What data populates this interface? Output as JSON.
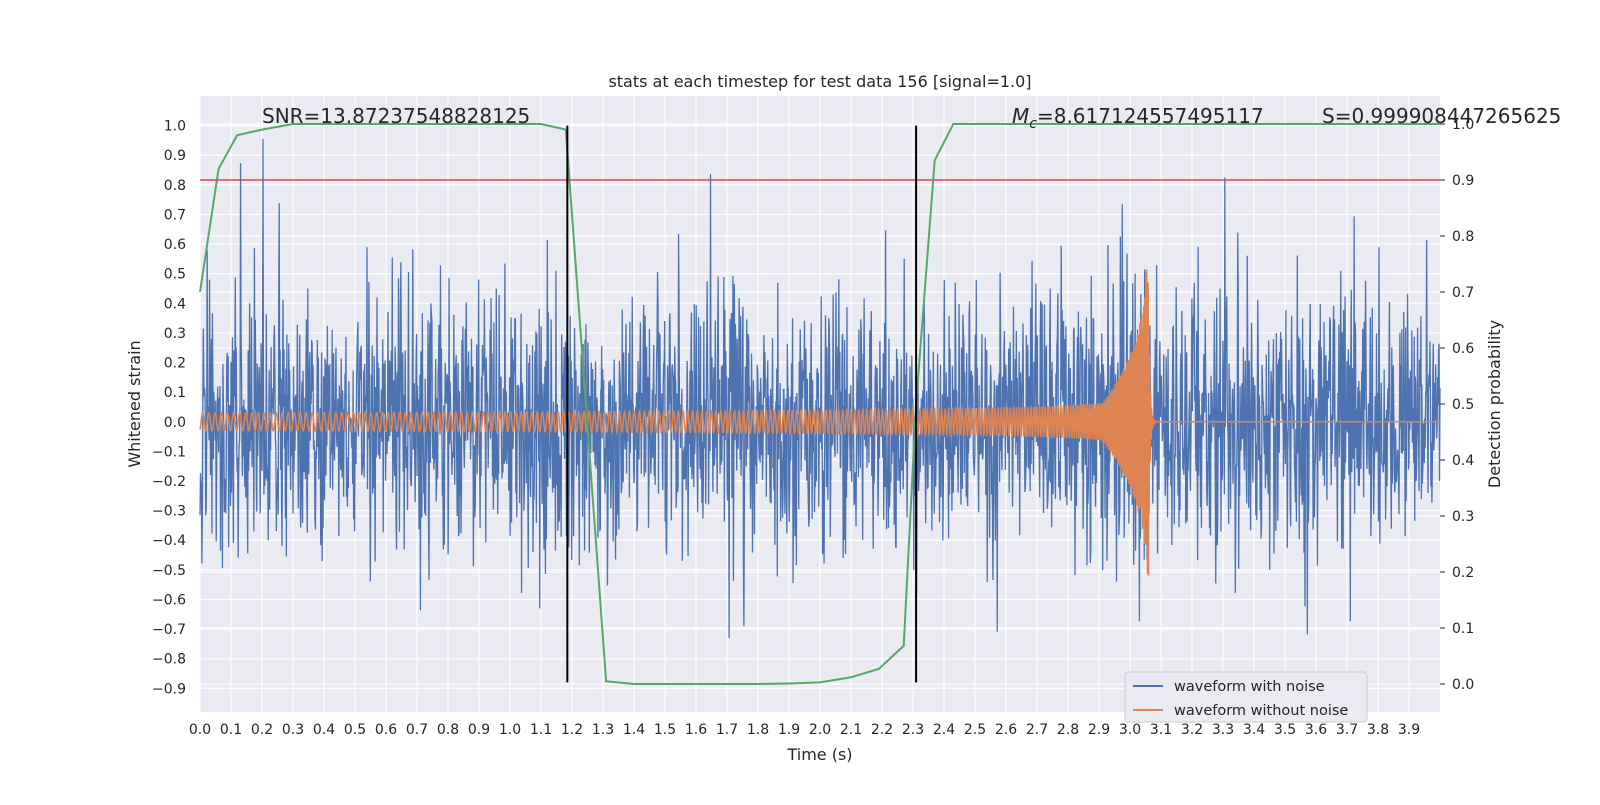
{
  "chart_data": {
    "type": "line",
    "title": "stats at each timestep for test data 156 [signal=1.0]",
    "xlabel": "Time (s)",
    "ylabel": "Whitened strain",
    "y2label": "Detection probability",
    "xlim": [
      0.0,
      4.0
    ],
    "ylim": [
      -0.98,
      1.1
    ],
    "y2lim": [
      -0.05,
      1.05
    ],
    "grid": true,
    "legend_position": "lower-right",
    "x_ticks": [
      "0.0",
      "0.1",
      "0.2",
      "0.3",
      "0.4",
      "0.5",
      "0.6",
      "0.7",
      "0.8",
      "0.9",
      "1.0",
      "1.1",
      "1.2",
      "1.3",
      "1.4",
      "1.5",
      "1.6",
      "1.7",
      "1.8",
      "1.9",
      "2.0",
      "2.1",
      "2.2",
      "2.3",
      "2.4",
      "2.5",
      "2.6",
      "2.7",
      "2.8",
      "2.9",
      "3.0",
      "3.1",
      "3.2",
      "3.3",
      "3.4",
      "3.5",
      "3.6",
      "3.7",
      "3.8",
      "3.9"
    ],
    "y_ticks": [
      "1.0",
      "0.9",
      "0.8",
      "0.7",
      "0.6",
      "0.5",
      "0.4",
      "0.3",
      "0.2",
      "0.1",
      "0.0",
      "−0.1",
      "−0.2",
      "−0.3",
      "−0.4",
      "−0.5",
      "−0.6",
      "−0.7",
      "−0.8",
      "−0.9"
    ],
    "y2_ticks": [
      "1.0",
      "0.9",
      "0.8",
      "0.7",
      "0.6",
      "0.5",
      "0.4",
      "0.3",
      "0.2",
      "0.1",
      "0.0"
    ],
    "annotations": {
      "snr": "SNR=13.87237548828125",
      "mc_symbol": "M",
      "mc_sub": "c",
      "mc_value": "=8.617124557495117",
      "s": "S=0.999908447265625"
    },
    "series": [
      {
        "name": "waveform with noise",
        "color": "#4c72b0",
        "amplitude_typical": 0.35,
        "amplitude_max": 1.0
      },
      {
        "name": "waveform without noise",
        "color": "#dd8452",
        "merger_time": 3.06,
        "amplitude_start": 0.03,
        "amplitude_peak": 0.52
      }
    ],
    "detection_probability": {
      "color": "#55a868",
      "x": [
        0.0,
        0.06,
        0.12,
        0.2,
        0.3,
        0.4,
        0.5,
        0.6,
        0.7,
        0.8,
        0.9,
        1.0,
        1.1,
        1.18,
        1.31,
        1.4,
        1.5,
        1.6,
        1.7,
        1.8,
        1.9,
        2.0,
        2.1,
        2.19,
        2.27,
        2.31,
        2.37,
        2.43,
        2.5,
        3.0,
        3.5,
        4.0
      ],
      "y": [
        0.7,
        0.92,
        0.98,
        0.99,
        1.0,
        1.0,
        1.0,
        1.0,
        1.0,
        1.0,
        1.0,
        1.0,
        1.0,
        0.99,
        0.005,
        0.0,
        0.0,
        0.0,
        0.0,
        0.0,
        0.001,
        0.003,
        0.012,
        0.027,
        0.068,
        0.5,
        0.935,
        1.0,
        1.0,
        1.0,
        1.0,
        1.0
      ]
    },
    "threshold_line": {
      "value": 0.9,
      "axis": "right",
      "color": "#c44e52"
    },
    "vertical_lines": {
      "x": [
        1.185,
        2.31
      ],
      "color": "#000000"
    }
  }
}
